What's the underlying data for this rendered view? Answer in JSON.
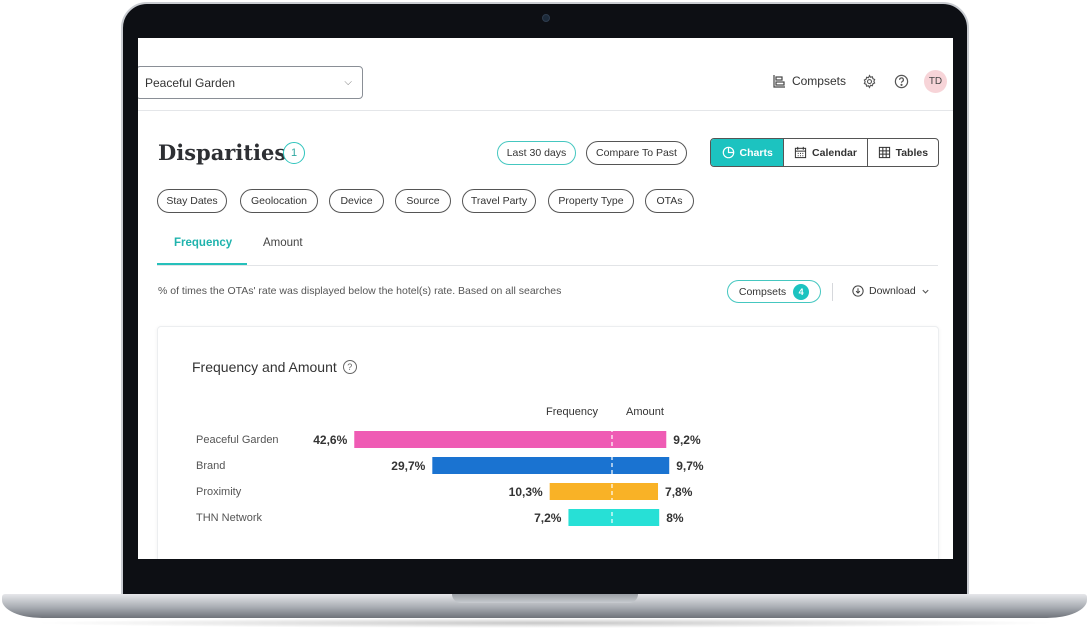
{
  "header": {
    "property_select": "Peaceful Garden",
    "compsets_label": "Compsets",
    "avatar_initials": "TD"
  },
  "page": {
    "title": "Disparities",
    "title_badge": "1",
    "last_days_button": "Last 30 days",
    "compare_button": "Compare To Past",
    "view_toggle": [
      {
        "label": "Charts",
        "icon": "pie-chart-icon",
        "active": true
      },
      {
        "label": "Calendar",
        "icon": "calendar-icon",
        "active": false
      },
      {
        "label": "Tables",
        "icon": "table-icon",
        "active": false
      }
    ]
  },
  "filters": [
    "Stay Dates",
    "Geolocation",
    "Device",
    "Source",
    "Travel Party",
    "Property Type",
    "OTAs"
  ],
  "tabs": [
    {
      "label": "Frequency",
      "active": true
    },
    {
      "label": "Amount",
      "active": false
    }
  ],
  "toolbar": {
    "description": "% of times the OTAs' rate was displayed below the hotel(s) rate. Based on all searches",
    "compsets_label": "Compsets",
    "compsets_count": "4",
    "download_label": "Download"
  },
  "card": {
    "title": "Frequency and Amount"
  },
  "chart_data": {
    "type": "bar",
    "title": "Frequency and Amount",
    "column_labels": [
      "Frequency",
      "Amount"
    ],
    "categories": [
      "Peaceful Garden",
      "Brand",
      "Proximity",
      "THN Network"
    ],
    "series": [
      {
        "name": "Frequency",
        "values": [
          42.6,
          29.7,
          10.3,
          7.2
        ],
        "labels": [
          "42,6%",
          "29,7%",
          "10,3%",
          "7,2%"
        ]
      },
      {
        "name": "Amount",
        "values": [
          9.2,
          9.7,
          7.8,
          8
        ],
        "labels": [
          "9,2%",
          "9,7%",
          "7,8%",
          "8%"
        ]
      }
    ],
    "colors": [
      "#ef5bb4",
      "#1a73d1",
      "#f9b226",
      "#27e0d6"
    ]
  }
}
